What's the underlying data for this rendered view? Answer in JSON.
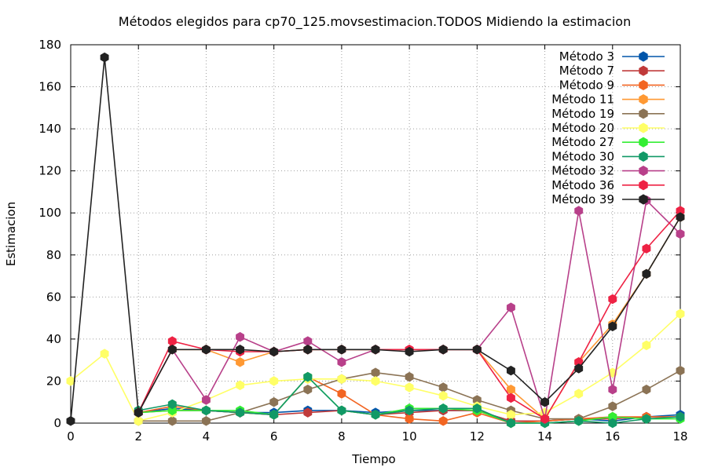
{
  "chart_data": {
    "type": "line",
    "title": "Métodos elegidos para cp70_125.movsestimacion.TODOS Midiendo la estimacion",
    "xlabel": "Tiempo",
    "ylabel": "Estimacion",
    "xlim": [
      0,
      18
    ],
    "ylim": [
      0,
      180
    ],
    "xticks": [
      0,
      2,
      4,
      6,
      8,
      10,
      12,
      14,
      16,
      18
    ],
    "yticks": [
      0,
      20,
      40,
      60,
      80,
      100,
      120,
      140,
      160,
      180
    ],
    "grid": true,
    "legend_position": "top-right",
    "x": [
      0,
      1,
      2,
      3,
      4,
      5,
      6,
      7,
      8,
      9,
      10,
      11,
      12,
      13,
      14,
      15,
      16,
      17,
      18
    ],
    "series": [
      {
        "name": "Método 3",
        "color": "#0055aa",
        "values": [
          null,
          null,
          5,
          7,
          6,
          5,
          5,
          6,
          6,
          5,
          6,
          6,
          6,
          1,
          1,
          2,
          1,
          3,
          4
        ]
      },
      {
        "name": "Método 7",
        "color": "#c03a3a",
        "values": [
          null,
          null,
          5,
          6,
          6,
          5,
          4,
          5,
          6,
          4,
          5,
          6,
          6,
          1,
          1,
          2,
          2,
          3,
          3
        ]
      },
      {
        "name": "Método 9",
        "color": "#f26522",
        "values": [
          null,
          null,
          5,
          8,
          6,
          5,
          4,
          22,
          14,
          4,
          2,
          1,
          5,
          0,
          1,
          2,
          3,
          3,
          3
        ]
      },
      {
        "name": "Método 11",
        "color": "#ff9933",
        "values": [
          null,
          null,
          5,
          35,
          35,
          29,
          34,
          35,
          35,
          35,
          35,
          35,
          35,
          16,
          2,
          29,
          47,
          71,
          98
        ]
      },
      {
        "name": "Método 19",
        "color": "#8b7355",
        "values": [
          null,
          null,
          1,
          1,
          1,
          5,
          10,
          16,
          21,
          24,
          22,
          17,
          11,
          6,
          2,
          2,
          8,
          16,
          25
        ]
      },
      {
        "name": "Método 20",
        "color": "#ffff66",
        "values": [
          20,
          33,
          1,
          5,
          11,
          18,
          20,
          21,
          21,
          20,
          17,
          13,
          8,
          4,
          5,
          14,
          24,
          37,
          52
        ]
      },
      {
        "name": "Método 27",
        "color": "#33ee33",
        "values": [
          null,
          null,
          5,
          6,
          6,
          6,
          4,
          22,
          6,
          4,
          7,
          7,
          6,
          0,
          0,
          1,
          3,
          2,
          2
        ]
      },
      {
        "name": "Método 30",
        "color": "#119966",
        "values": [
          null,
          null,
          6,
          9,
          6,
          5,
          4,
          22,
          6,
          4,
          6,
          7,
          7,
          0,
          0,
          1,
          0,
          2,
          3
        ]
      },
      {
        "name": "Método 32",
        "color": "#b8408a",
        "values": [
          null,
          null,
          5,
          35,
          11,
          41,
          34,
          39,
          29,
          35,
          35,
          35,
          35,
          55,
          2,
          101,
          16,
          106,
          90
        ]
      },
      {
        "name": "Método 36",
        "color": "#ee2244",
        "values": [
          null,
          null,
          5,
          39,
          35,
          34,
          34,
          35,
          35,
          35,
          35,
          35,
          35,
          12,
          2,
          29,
          59,
          83,
          101
        ]
      },
      {
        "name": "Método 39",
        "color": "#222222",
        "values": [
          1,
          174,
          5,
          35,
          35,
          35,
          34,
          35,
          35,
          35,
          34,
          35,
          35,
          25,
          10,
          26,
          46,
          71,
          98
        ]
      }
    ]
  }
}
